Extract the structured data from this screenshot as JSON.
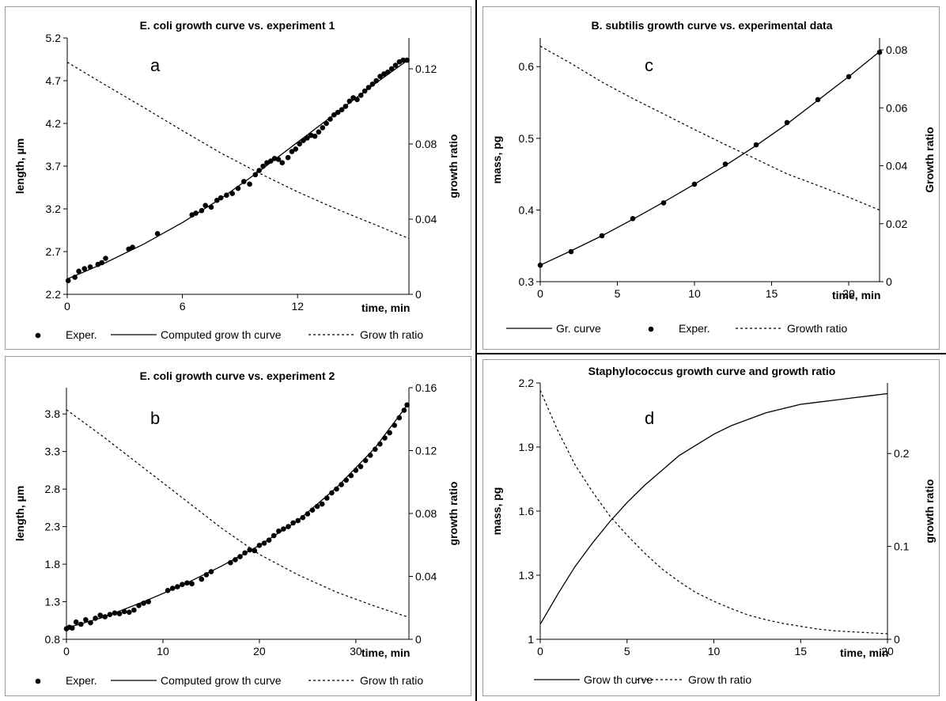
{
  "chart_data": [
    {
      "id": "a",
      "type": "scatter",
      "title": "E. coli growth curve vs. experiment 1",
      "panel_label": "a",
      "xlabel": "time, min",
      "ylabel": "length, µm",
      "y2label": "growth ratio",
      "xlim": [
        0,
        17.8
      ],
      "ylim": [
        2.2,
        5.2
      ],
      "y2lim": [
        0,
        0.1364
      ],
      "x_ticks": [
        0,
        6,
        12
      ],
      "y_ticks": [
        2.2,
        2.7,
        3.2,
        3.7,
        4.2,
        4.7,
        5.2
      ],
      "y2_ticks": [
        0,
        0.04,
        0.08,
        0.12
      ],
      "y2_tick_labels": [
        "0",
        "0.04",
        "0.08",
        "0.12"
      ],
      "legend": [
        "Exper.",
        "Computed grow th curve",
        "Grow th ratio"
      ],
      "legend_order": [
        "points",
        "curve",
        "ratio"
      ],
      "legend_placement": "bottom",
      "points": [
        [
          0.05,
          2.36
        ],
        [
          0.4,
          2.4
        ],
        [
          0.6,
          2.47
        ],
        [
          0.9,
          2.5
        ],
        [
          1.2,
          2.52
        ],
        [
          1.6,
          2.55
        ],
        [
          1.8,
          2.57
        ],
        [
          2.0,
          2.62
        ],
        [
          3.2,
          2.73
        ],
        [
          3.4,
          2.75
        ],
        [
          4.7,
          2.91
        ],
        [
          6.5,
          3.13
        ],
        [
          6.7,
          3.15
        ],
        [
          7.0,
          3.18
        ],
        [
          7.2,
          3.24
        ],
        [
          7.5,
          3.22
        ],
        [
          7.8,
          3.3
        ],
        [
          8.0,
          3.33
        ],
        [
          8.3,
          3.36
        ],
        [
          8.6,
          3.38
        ],
        [
          8.9,
          3.44
        ],
        [
          9.2,
          3.52
        ],
        [
          9.5,
          3.49
        ],
        [
          9.8,
          3.6
        ],
        [
          10.0,
          3.65
        ],
        [
          10.2,
          3.7
        ],
        [
          10.4,
          3.74
        ],
        [
          10.6,
          3.76
        ],
        [
          10.8,
          3.79
        ],
        [
          11.0,
          3.78
        ],
        [
          11.2,
          3.74
        ],
        [
          11.5,
          3.8
        ],
        [
          11.7,
          3.87
        ],
        [
          11.9,
          3.9
        ],
        [
          12.1,
          3.96
        ],
        [
          12.3,
          4.0
        ],
        [
          12.5,
          4.03
        ],
        [
          12.7,
          4.06
        ],
        [
          12.9,
          4.05
        ],
        [
          13.1,
          4.1
        ],
        [
          13.3,
          4.15
        ],
        [
          13.5,
          4.2
        ],
        [
          13.7,
          4.25
        ],
        [
          13.9,
          4.3
        ],
        [
          14.1,
          4.33
        ],
        [
          14.3,
          4.36
        ],
        [
          14.5,
          4.4
        ],
        [
          14.7,
          4.46
        ],
        [
          14.9,
          4.5
        ],
        [
          15.1,
          4.48
        ],
        [
          15.3,
          4.53
        ],
        [
          15.5,
          4.58
        ],
        [
          15.7,
          4.62
        ],
        [
          15.9,
          4.66
        ],
        [
          16.1,
          4.7
        ],
        [
          16.3,
          4.75
        ],
        [
          16.5,
          4.78
        ],
        [
          16.7,
          4.8
        ],
        [
          16.9,
          4.84
        ],
        [
          17.1,
          4.88
        ],
        [
          17.3,
          4.92
        ],
        [
          17.5,
          4.94
        ],
        [
          17.7,
          4.94
        ]
      ],
      "curve": [
        [
          0,
          2.38
        ],
        [
          2,
          2.57
        ],
        [
          4,
          2.79
        ],
        [
          6,
          3.04
        ],
        [
          8,
          3.32
        ],
        [
          10,
          3.64
        ],
        [
          12,
          3.98
        ],
        [
          14,
          4.32
        ],
        [
          16,
          4.66
        ],
        [
          17.8,
          4.95
        ]
      ],
      "ratio": [
        [
          0,
          0.1235
        ],
        [
          2,
          0.1113
        ],
        [
          4,
          0.0993
        ],
        [
          6,
          0.0871
        ],
        [
          8,
          0.0752
        ],
        [
          10,
          0.0645
        ],
        [
          12,
          0.0545
        ],
        [
          14,
          0.0455
        ],
        [
          16,
          0.0372
        ],
        [
          17.8,
          0.0297
        ]
      ]
    },
    {
      "id": "b",
      "type": "scatter",
      "title": "E. coli growth curve vs. experiment 2",
      "panel_label": "b",
      "xlabel": "time, min",
      "ylabel": "length,  µm",
      "y2label": "growth ratio",
      "xlim": [
        0,
        35.5
      ],
      "ylim": [
        0.8,
        4.15
      ],
      "y2lim": [
        0,
        0.16
      ],
      "x_ticks": [
        0,
        10,
        20,
        30
      ],
      "y_ticks": [
        0.8,
        1.3,
        1.8,
        2.3,
        2.8,
        3.3,
        3.8
      ],
      "y2_ticks": [
        0,
        0.04,
        0.08,
        0.12,
        0.16
      ],
      "y2_tick_labels": [
        "0",
        "0.04",
        "0.08",
        "0.12",
        "0.16"
      ],
      "legend": [
        "Exper.",
        "Computed grow th curve",
        "Grow th ratio"
      ],
      "legend_order": [
        "points",
        "curve",
        "ratio"
      ],
      "legend_placement": "bottom",
      "points": [
        [
          0,
          0.94
        ],
        [
          0.3,
          0.96
        ],
        [
          0.6,
          0.95
        ],
        [
          1,
          1.03
        ],
        [
          1.5,
          1.0
        ],
        [
          2,
          1.06
        ],
        [
          2.5,
          1.02
        ],
        [
          3,
          1.08
        ],
        [
          3.5,
          1.12
        ],
        [
          4,
          1.1
        ],
        [
          4.5,
          1.13
        ],
        [
          5,
          1.15
        ],
        [
          5.5,
          1.14
        ],
        [
          6,
          1.17
        ],
        [
          6.5,
          1.16
        ],
        [
          7,
          1.19
        ],
        [
          7.5,
          1.25
        ],
        [
          8,
          1.28
        ],
        [
          8.5,
          1.3
        ],
        [
          10.5,
          1.45
        ],
        [
          11,
          1.48
        ],
        [
          11.5,
          1.5
        ],
        [
          12,
          1.53
        ],
        [
          12.5,
          1.55
        ],
        [
          13,
          1.54
        ],
        [
          14,
          1.6
        ],
        [
          14.5,
          1.66
        ],
        [
          15,
          1.7
        ],
        [
          17,
          1.82
        ],
        [
          17.5,
          1.86
        ],
        [
          18,
          1.9
        ],
        [
          18.5,
          1.95
        ],
        [
          19,
          1.99
        ],
        [
          19.5,
          1.98
        ],
        [
          20,
          2.05
        ],
        [
          20.5,
          2.08
        ],
        [
          21,
          2.12
        ],
        [
          21.5,
          2.18
        ],
        [
          22,
          2.24
        ],
        [
          22.5,
          2.27
        ],
        [
          23,
          2.3
        ],
        [
          23.5,
          2.35
        ],
        [
          24,
          2.38
        ],
        [
          24.5,
          2.42
        ],
        [
          25,
          2.47
        ],
        [
          25.5,
          2.52
        ],
        [
          26,
          2.57
        ],
        [
          26.5,
          2.6
        ],
        [
          27,
          2.68
        ],
        [
          27.5,
          2.75
        ],
        [
          28,
          2.8
        ],
        [
          28.5,
          2.86
        ],
        [
          29,
          2.92
        ],
        [
          29.5,
          2.98
        ],
        [
          30,
          3.05
        ],
        [
          30.5,
          3.1
        ],
        [
          31,
          3.18
        ],
        [
          31.5,
          3.25
        ],
        [
          32,
          3.33
        ],
        [
          32.5,
          3.4
        ],
        [
          33,
          3.48
        ],
        [
          33.5,
          3.55
        ],
        [
          34,
          3.65
        ],
        [
          34.5,
          3.75
        ],
        [
          35,
          3.85
        ],
        [
          35.3,
          3.92
        ]
      ],
      "curve": [
        [
          0,
          0.95
        ],
        [
          4,
          1.1
        ],
        [
          8,
          1.3
        ],
        [
          12,
          1.52
        ],
        [
          16,
          1.77
        ],
        [
          20,
          2.05
        ],
        [
          24,
          2.38
        ],
        [
          28,
          2.82
        ],
        [
          32,
          3.35
        ],
        [
          35.5,
          3.95
        ]
      ],
      "ratio": [
        [
          0,
          0.146
        ],
        [
          4,
          0.128
        ],
        [
          8,
          0.109
        ],
        [
          12,
          0.09
        ],
        [
          16,
          0.071
        ],
        [
          20,
          0.054
        ],
        [
          24,
          0.041
        ],
        [
          28,
          0.03
        ],
        [
          32,
          0.021
        ],
        [
          35.5,
          0.014
        ]
      ]
    },
    {
      "id": "c",
      "type": "scatter",
      "title": "B. subtilis growth curve vs. experimental data",
      "panel_label": "c",
      "xlabel": "time, min",
      "ylabel": "mass, pg",
      "y2label": "Growth ratio",
      "xlim": [
        0,
        22
      ],
      "ylim": [
        0.3,
        0.64
      ],
      "y2lim": [
        0,
        0.0841
      ],
      "x_ticks": [
        0,
        5,
        10,
        15,
        20
      ],
      "y_ticks": [
        0.3,
        0.4,
        0.5,
        0.6
      ],
      "y2_ticks": [
        0,
        0.02,
        0.04,
        0.06,
        0.08
      ],
      "y2_tick_labels": [
        "0",
        "0.02",
        "0.04",
        "0.06",
        "0.08"
      ],
      "legend": [
        "Gr. curve",
        "Exper.",
        "Growth ratio"
      ],
      "legend_order": [
        "curve",
        "points",
        "ratio"
      ],
      "legend_placement": "bottom",
      "points": [
        [
          0,
          0.323
        ],
        [
          2,
          0.342
        ],
        [
          4,
          0.364
        ],
        [
          6,
          0.388
        ],
        [
          8,
          0.41
        ],
        [
          10,
          0.436
        ],
        [
          12,
          0.464
        ],
        [
          14,
          0.491
        ],
        [
          16,
          0.522
        ],
        [
          18,
          0.554
        ],
        [
          20,
          0.586
        ],
        [
          22,
          0.62
        ]
      ],
      "curve": [
        [
          0,
          0.323
        ],
        [
          2,
          0.343
        ],
        [
          4,
          0.364
        ],
        [
          6,
          0.387
        ],
        [
          8,
          0.411
        ],
        [
          10,
          0.436
        ],
        [
          12,
          0.462
        ],
        [
          14,
          0.49
        ],
        [
          16,
          0.52
        ],
        [
          18,
          0.553
        ],
        [
          20,
          0.586
        ],
        [
          22,
          0.621
        ]
      ],
      "ratio": [
        [
          0,
          0.0813
        ],
        [
          2,
          0.0753
        ],
        [
          4,
          0.0689
        ],
        [
          6,
          0.0632
        ],
        [
          8,
          0.0579
        ],
        [
          10,
          0.0525
        ],
        [
          12,
          0.0473
        ],
        [
          14,
          0.0423
        ],
        [
          16,
          0.0372
        ],
        [
          18,
          0.0332
        ],
        [
          20,
          0.0291
        ],
        [
          22,
          0.0247
        ]
      ]
    },
    {
      "id": "d",
      "type": "line",
      "title": "Staphylococcus growth curve and growth ratio",
      "panel_label": "d",
      "xlabel": "time, min",
      "ylabel": "mass, pg",
      "y2label": "growth ratio",
      "xlim": [
        0,
        20
      ],
      "ylim": [
        1.0,
        2.2
      ],
      "y2lim": [
        0,
        0.276
      ],
      "x_ticks": [
        0,
        5,
        10,
        15,
        20
      ],
      "y_ticks": [
        1.0,
        1.3,
        1.6,
        1.9,
        2.2
      ],
      "y_tick_labels": [
        "1",
        "1.3",
        "1.6",
        "1.9",
        "2.2"
      ],
      "y2_ticks": [
        0,
        0.1,
        0.2
      ],
      "y2_tick_labels": [
        "0",
        "0.1",
        "0.2"
      ],
      "legend": [
        "Grow th curve",
        "Grow th ratio"
      ],
      "legend_order": [
        "curve",
        "ratio"
      ],
      "legend_placement": "bottom",
      "points": [],
      "curve": [
        [
          0,
          1.07
        ],
        [
          1,
          1.21
        ],
        [
          2,
          1.34
        ],
        [
          3,
          1.45
        ],
        [
          4,
          1.55
        ],
        [
          5,
          1.64
        ],
        [
          6,
          1.72
        ],
        [
          7,
          1.79
        ],
        [
          8,
          1.86
        ],
        [
          9,
          1.91
        ],
        [
          10,
          1.96
        ],
        [
          11,
          2.0
        ],
        [
          12,
          2.03
        ],
        [
          13,
          2.06
        ],
        [
          14,
          2.08
        ],
        [
          15,
          2.1
        ],
        [
          16,
          2.11
        ],
        [
          17,
          2.12
        ],
        [
          18,
          2.13
        ],
        [
          19,
          2.14
        ],
        [
          20,
          2.15
        ]
      ],
      "ratio": [
        [
          0,
          0.268
        ],
        [
          1,
          0.225
        ],
        [
          2,
          0.188
        ],
        [
          3,
          0.159
        ],
        [
          4,
          0.133
        ],
        [
          5,
          0.112
        ],
        [
          6,
          0.093
        ],
        [
          7,
          0.076
        ],
        [
          8,
          0.062
        ],
        [
          9,
          0.05
        ],
        [
          10,
          0.041
        ],
        [
          11,
          0.033
        ],
        [
          12,
          0.026
        ],
        [
          13,
          0.021
        ],
        [
          14,
          0.017
        ],
        [
          15,
          0.014
        ],
        [
          16,
          0.011
        ],
        [
          17,
          0.009
        ],
        [
          18,
          0.008
        ],
        [
          19,
          0.007
        ],
        [
          20,
          0.006
        ]
      ]
    }
  ]
}
